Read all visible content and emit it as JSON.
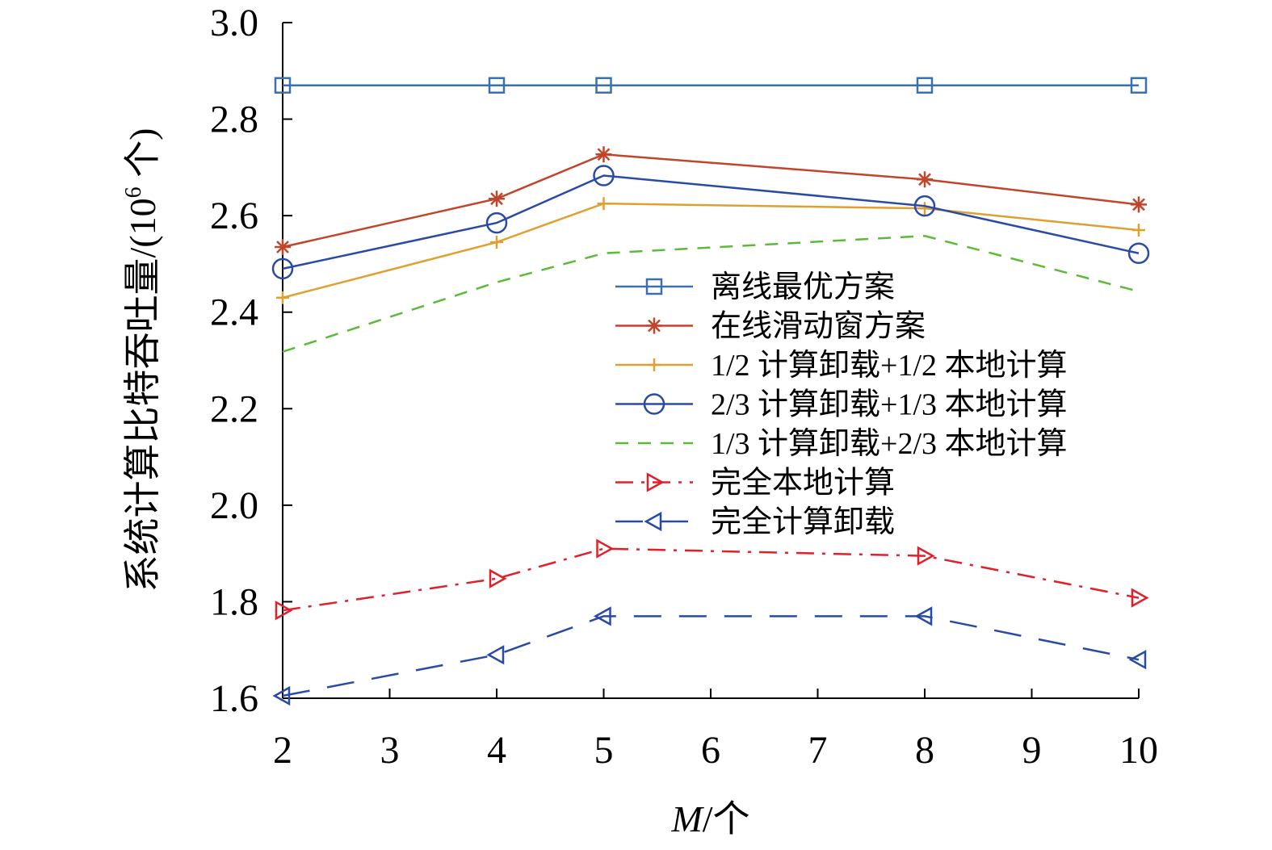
{
  "chart_data": {
    "type": "line",
    "xlabel_italic": "M",
    "xlabel_rest": "/个",
    "ylabel_main": "系统计算比特吞吐量/(10",
    "ylabel_sup": "6",
    "ylabel_end": " 个)",
    "xlim": [
      2,
      10
    ],
    "ylim": [
      1.6,
      3.0
    ],
    "xticks": [
      "2",
      "3",
      "4",
      "5",
      "6",
      "7",
      "8",
      "9",
      "10"
    ],
    "yticks": [
      "1.6",
      "1.8",
      "2.0",
      "2.2",
      "2.4",
      "2.6",
      "2.8",
      "3.0"
    ],
    "x": [
      2,
      4,
      5,
      8,
      10
    ],
    "legend_position": "center",
    "series": [
      {
        "name": "离线最优方案",
        "values": [
          2.87,
          2.87,
          2.87,
          2.87,
          2.87
        ],
        "color": "#3a70b0",
        "marker": "square",
        "dash": "solid"
      },
      {
        "name": "在线滑动窗方案",
        "values": [
          2.535,
          2.635,
          2.727,
          2.675,
          2.623
        ],
        "color": "#c0452a",
        "marker": "asterisk",
        "dash": "solid"
      },
      {
        "name": "1/2 计算卸载+1/2 本地计算",
        "values": [
          2.43,
          2.545,
          2.625,
          2.615,
          2.57
        ],
        "color": "#e0a030",
        "marker": "plus",
        "dash": "solid"
      },
      {
        "name": "2/3 计算卸载+1/3 本地计算",
        "values": [
          2.49,
          2.585,
          2.683,
          2.62,
          2.522
        ],
        "color": "#2a4aa8",
        "marker": "circle",
        "dash": "solid"
      },
      {
        "name": "1/3 计算卸载+2/3 本地计算",
        "values": [
          2.318,
          2.462,
          2.522,
          2.558,
          2.443
        ],
        "color": "#5cba38",
        "marker": "none",
        "dash": "dashed"
      },
      {
        "name": "完全本地计算",
        "values": [
          1.782,
          1.848,
          1.91,
          1.895,
          1.808
        ],
        "color": "#e0202a",
        "marker": "triangle-right",
        "dash": "dashdot"
      },
      {
        "name": "完全计算卸载",
        "values": [
          1.605,
          1.69,
          1.77,
          1.77,
          1.68
        ],
        "color": "#2a4aa8",
        "marker": "triangle-left",
        "dash": "longdash"
      }
    ]
  }
}
